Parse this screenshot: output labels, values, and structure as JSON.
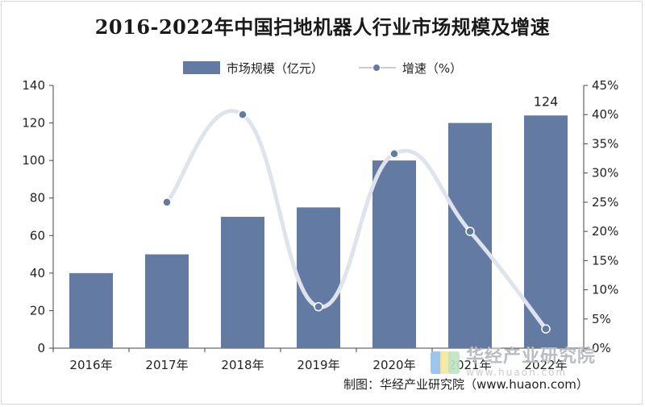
{
  "title": "2016-2022年中国扫地机器人行业市场规模及增速",
  "legend": {
    "bar_label": "市场规模（亿元）",
    "line_label": "增速（%）"
  },
  "source": "制图：华经产业研究院（www.huaon.com）",
  "watermark": {
    "text_cn": "华经产业研究院",
    "text_en": "www.huaon.com"
  },
  "colors": {
    "bar": "#637aa3",
    "line": "#dfe3ec",
    "marker": "#637aa3",
    "axis": "#444444"
  },
  "chart_data": {
    "type": "bar",
    "title": "2016-2022年中国扫地机器人行业市场规模及增速",
    "categories": [
      "2016年",
      "2017年",
      "2018年",
      "2019年",
      "2020年",
      "2021年",
      "2022年"
    ],
    "series": [
      {
        "name": "市场规模（亿元）",
        "type": "bar",
        "axis": "left",
        "values": [
          40,
          50,
          70,
          75,
          100,
          120,
          124
        ]
      },
      {
        "name": "增速（%）",
        "type": "line",
        "axis": "right",
        "values": [
          null,
          25,
          40,
          7.1,
          33.3,
          20,
          3.3
        ]
      }
    ],
    "data_labels": [
      {
        "category": "2022年",
        "text": "124"
      }
    ],
    "y_left": {
      "ylim": [
        0,
        140
      ],
      "ticks": [
        "0",
        "20",
        "40",
        "60",
        "80",
        "100",
        "120",
        "140"
      ]
    },
    "y_right": {
      "ylim": [
        0,
        45
      ],
      "ticks": [
        "0%",
        "5%",
        "10%",
        "15%",
        "20%",
        "25%",
        "30%",
        "35%",
        "40%",
        "45%"
      ]
    },
    "grid": false,
    "legend_position": "top-center"
  }
}
